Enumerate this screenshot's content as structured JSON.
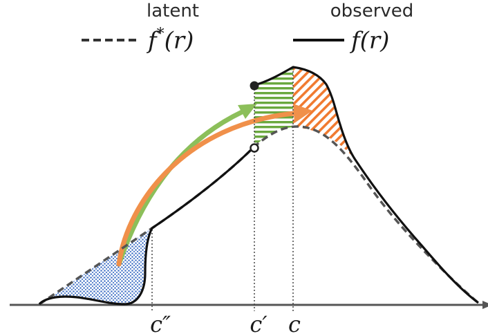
{
  "legend": {
    "latent": {
      "heading": "latent",
      "formula": "f*(r)",
      "formula_base": "f",
      "formula_sup": "*",
      "formula_arg": "(r)",
      "line_style": "dashed"
    },
    "observed": {
      "heading": "observed",
      "formula": "f(r)",
      "formula_base": "f",
      "formula_arg": "(r)",
      "line_style": "solid"
    }
  },
  "axis": {
    "ticks": [
      {
        "id": "c-double-prime",
        "label": "c″"
      },
      {
        "id": "c-prime",
        "label": "c′"
      },
      {
        "id": "c",
        "label": "c"
      }
    ]
  },
  "colors": {
    "axis": "#555555",
    "observed_curve": "#111111",
    "latent_curve": "#555555",
    "green_arrow": "#8cbf5a",
    "orange_arrow": "#f0904a",
    "blue_fill": "#4a78c8",
    "green_fill": "#6aa83e",
    "orange_fill": "#f07a30"
  },
  "icons": {
    "filled_marker": "filled-circle",
    "open_marker": "open-circle"
  }
}
